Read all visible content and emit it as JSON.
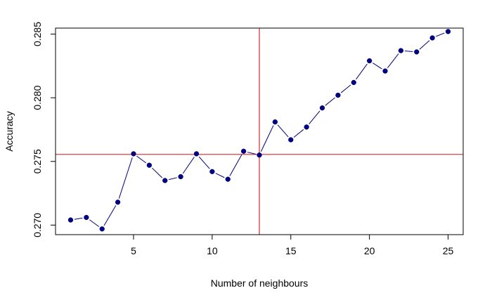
{
  "chart_data": {
    "type": "line",
    "title": "",
    "xlabel": "Number of neighbours",
    "ylabel": "Accuracy",
    "xlim": [
      0.04,
      25.96
    ],
    "ylim": [
      0.26925,
      0.28547
    ],
    "x_ticks": [
      5,
      10,
      15,
      20,
      25
    ],
    "x_tick_labels": [
      "5",
      "10",
      "15",
      "20",
      "25"
    ],
    "y_ticks": [
      0.27,
      0.275,
      0.28,
      0.285
    ],
    "y_tick_labels": [
      "0.270",
      "0.275",
      "0.280",
      "0.285"
    ],
    "grid": false,
    "legend": "none",
    "series": [
      {
        "x": [
          1,
          2,
          3,
          4,
          5,
          6,
          7,
          8,
          9,
          10,
          11,
          12,
          13,
          14,
          15,
          16,
          17,
          18,
          19,
          20,
          21,
          22,
          23,
          24,
          25
        ],
        "values": [
          0.2704,
          0.2706,
          0.2697,
          0.2718,
          0.2756,
          0.2747,
          0.2735,
          0.2738,
          0.2756,
          0.2742,
          0.2736,
          0.2758,
          0.2755,
          0.2781,
          0.2767,
          0.2777,
          0.2792,
          0.2802,
          0.2812,
          0.2829,
          0.2821,
          0.2837,
          0.2836,
          0.2847,
          0.2852
        ],
        "point_color": "#00007f",
        "line_color": "#00007f"
      }
    ],
    "reference_lines": {
      "vertical_x": 13,
      "horizontal_y": 0.27555,
      "color": "#d9282e"
    }
  }
}
